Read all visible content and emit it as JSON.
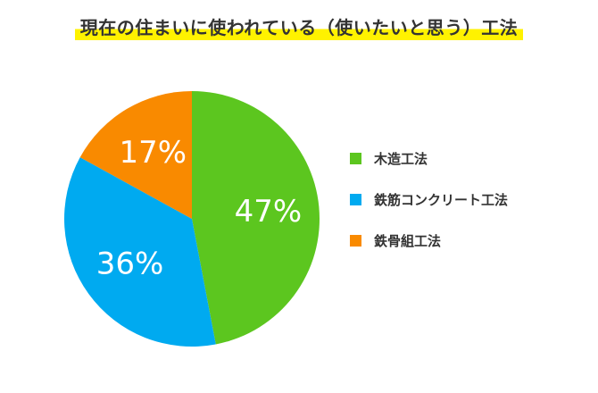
{
  "chart_data": {
    "type": "pie",
    "title": "現在の住まいに使われている（使いたいと思う）工法",
    "categories": [
      "木造工法",
      "鉄筋コンクリート工法",
      "鉄骨組工法"
    ],
    "values": [
      47,
      36,
      17
    ],
    "labels": [
      "47%",
      "36%",
      "17%"
    ],
    "colors": [
      "#5cc61f",
      "#00aaf0",
      "#f98a00"
    ],
    "start": "12 o'clock",
    "direction": "clockwise",
    "legend_position": "right"
  }
}
